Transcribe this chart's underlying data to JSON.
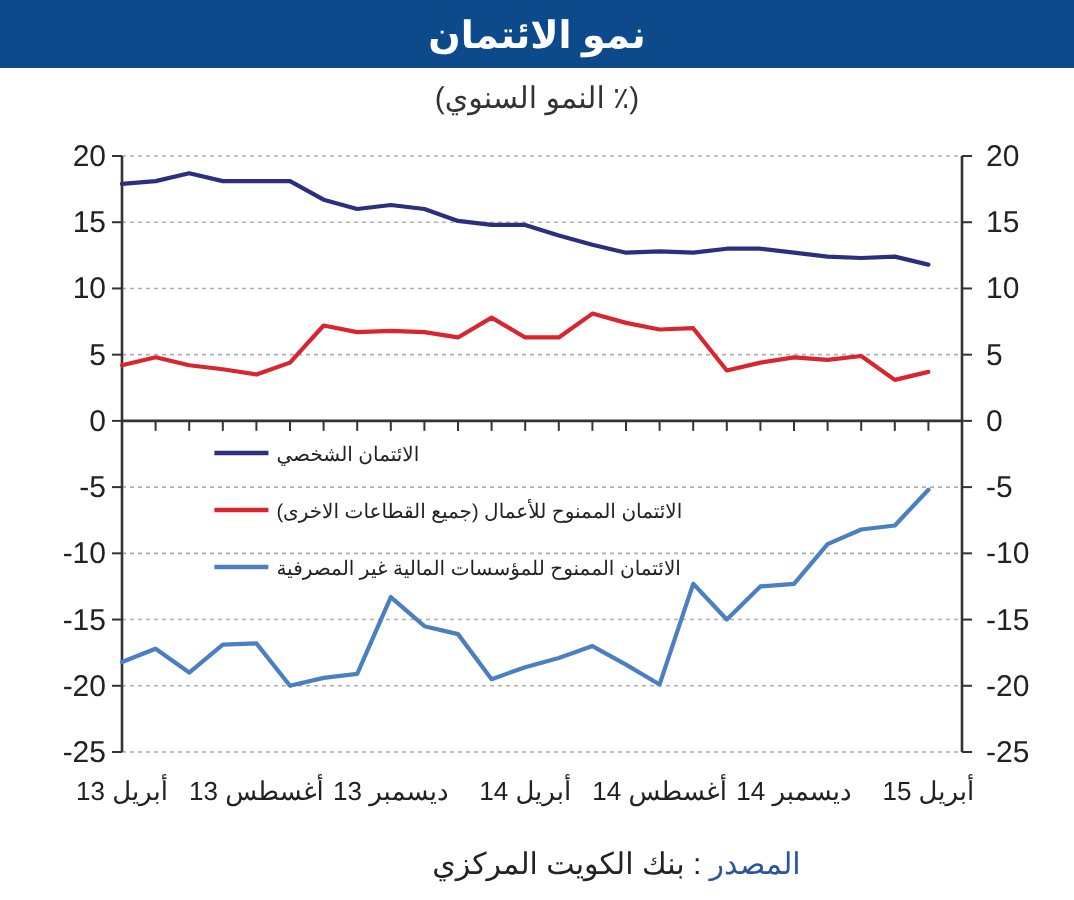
{
  "chart_data": {
    "type": "line",
    "title": "نمو الائتمان",
    "subtitle": "(٪ النمو السنوي)",
    "x": [
      "2013-04",
      "2013-05",
      "2013-06",
      "2013-07",
      "2013-08",
      "2013-09",
      "2013-10",
      "2013-11",
      "2013-12",
      "2014-01",
      "2014-02",
      "2014-03",
      "2014-04",
      "2014-05",
      "2014-06",
      "2014-07",
      "2014-08",
      "2014-09",
      "2014-10",
      "2014-11",
      "2014-12",
      "2015-01",
      "2015-02",
      "2015-03",
      "2015-04"
    ],
    "xlim": [
      "2013-04",
      "2015-05"
    ],
    "xticks": [
      {
        "value": "2013-04",
        "label": "أبريل 13"
      },
      {
        "value": "2013-05",
        "label": null
      },
      {
        "value": "2013-06",
        "label": null
      },
      {
        "value": "2013-07",
        "label": null
      },
      {
        "value": "2013-08",
        "label": "أغسطس 13"
      },
      {
        "value": "2013-09",
        "label": null
      },
      {
        "value": "2013-10",
        "label": null
      },
      {
        "value": "2013-11",
        "label": null
      },
      {
        "value": "2013-12",
        "label": "ديسمبر 13"
      },
      {
        "value": "2014-01",
        "label": null
      },
      {
        "value": "2014-02",
        "label": null
      },
      {
        "value": "2014-03",
        "label": null
      },
      {
        "value": "2014-04",
        "label": "أبريل 14"
      },
      {
        "value": "2014-05",
        "label": null
      },
      {
        "value": "2014-06",
        "label": null
      },
      {
        "value": "2014-07",
        "label": null
      },
      {
        "value": "2014-08",
        "label": "أغسطس 14"
      },
      {
        "value": "2014-09",
        "label": null
      },
      {
        "value": "2014-10",
        "label": null
      },
      {
        "value": "2014-11",
        "label": null
      },
      {
        "value": "2014-12",
        "label": "ديسمبر 14"
      },
      {
        "value": "2015-01",
        "label": null
      },
      {
        "value": "2015-02",
        "label": null
      },
      {
        "value": "2015-03",
        "label": null
      },
      {
        "value": "2015-04",
        "label": "أبريل 15"
      }
    ],
    "ylim": [
      -25,
      20
    ],
    "yticks": [
      -25,
      -20,
      -15,
      -10,
      -5,
      0,
      5,
      10,
      15,
      20
    ],
    "y2lim": [
      -25,
      20
    ],
    "y2ticks": [
      -25,
      -20,
      -15,
      -10,
      -5,
      0,
      5,
      10,
      15,
      20
    ],
    "grid": "y",
    "legend": "left",
    "series": [
      {
        "name": "الائتمان الشخصي",
        "color": "#2b2f7e",
        "values": [
          17.9,
          18.1,
          18.7,
          18.1,
          18.1,
          18.1,
          16.7,
          16.0,
          16.3,
          16.0,
          15.1,
          14.8,
          14.8,
          14.0,
          13.3,
          12.7,
          12.8,
          12.7,
          13.0,
          13.0,
          12.7,
          12.4,
          12.3,
          12.4,
          11.8
        ]
      },
      {
        "name": "الائتمان الممنوح للأعمال (جميع القطاعات الاخرى)",
        "color": "#d9262e",
        "values": [
          4.2,
          4.8,
          4.2,
          3.9,
          3.5,
          4.4,
          7.2,
          6.7,
          6.8,
          6.7,
          6.3,
          7.8,
          6.3,
          6.3,
          8.1,
          7.4,
          6.9,
          7.0,
          3.8,
          4.4,
          4.8,
          4.6,
          4.9,
          3.1,
          3.7
        ]
      },
      {
        "name": "الائتمان الممنوح للمؤسسات المالية غير المصرفية",
        "color": "#4a7fc1",
        "values": [
          -18.2,
          -17.2,
          -19.0,
          -16.9,
          -16.8,
          -20.0,
          -19.4,
          -19.1,
          -13.3,
          -15.5,
          -16.1,
          -19.5,
          -18.6,
          -17.9,
          -17.0,
          -18.4,
          -19.9,
          -12.3,
          -15.0,
          -12.5,
          -12.3,
          -9.3,
          -8.2,
          -7.9,
          -5.2
        ]
      }
    ],
    "annotations": [
      "المصدر : بنك الكويت المركزي"
    ]
  }
}
